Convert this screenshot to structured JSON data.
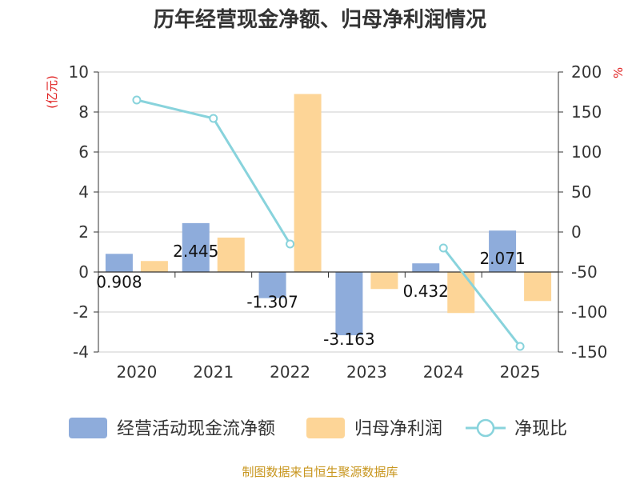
{
  "chart_data": {
    "type": "bar",
    "title": "历年经营现金净额、归母净利润情况",
    "categories": [
      "2020",
      "2021",
      "2022",
      "2023",
      "2024",
      "2025"
    ],
    "left_axis": {
      "unit": "(亿元)",
      "ylim": [
        -4,
        10
      ],
      "ticks": [
        -4,
        -2,
        0,
        2,
        4,
        6,
        8,
        10
      ]
    },
    "right_axis": {
      "unit": "%",
      "ylim": [
        -150,
        200
      ],
      "ticks": [
        -150,
        -100,
        -50,
        0,
        50,
        100,
        150,
        200
      ]
    },
    "series": [
      {
        "name": "经营活动现金流净额",
        "type": "bar",
        "axis": "left",
        "color": "#8eacdb",
        "values": [
          0.908,
          2.445,
          -1.307,
          -3.163,
          0.432,
          2.071
        ],
        "labels": [
          "0.908",
          "2.445",
          "-1.307",
          "-3.163",
          "0.432",
          "2.071"
        ]
      },
      {
        "name": "归母净利润",
        "type": "bar",
        "axis": "left",
        "color": "#fdd597",
        "values": [
          0.55,
          1.72,
          8.9,
          -0.85,
          -2.05,
          -1.45
        ]
      },
      {
        "name": "净现比",
        "type": "line",
        "axis": "right",
        "color": "#88d3dc",
        "x": [
          "2020",
          "2021",
          "2022",
          "2023",
          "2024",
          "2025"
        ],
        "values": [
          165,
          142,
          -15,
          null,
          -20,
          -143
        ]
      }
    ],
    "legend_position": "bottom",
    "source": "制图数据来自恒生聚源数据库"
  }
}
